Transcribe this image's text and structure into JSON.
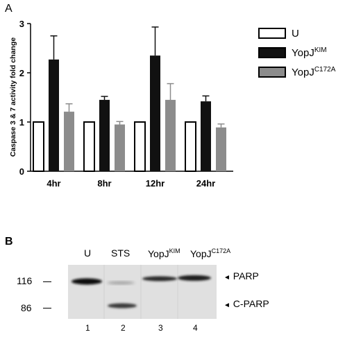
{
  "panelA": {
    "letter": "A",
    "chart_data": {
      "type": "bar",
      "categories": [
        "4hr",
        "8hr",
        "12hr",
        "24hr"
      ],
      "series": [
        {
          "name": "U",
          "values": [
            1.0,
            1.0,
            1.0,
            1.0
          ],
          "errors": [
            0,
            0,
            0,
            0
          ],
          "color": "#ffffff"
        },
        {
          "name": "YopJKIM",
          "values": [
            2.27,
            1.45,
            2.35,
            1.42
          ],
          "errors": [
            0.48,
            0.07,
            0.58,
            0.11
          ],
          "color": "#111111"
        },
        {
          "name": "YopJC172A",
          "values": [
            1.21,
            0.95,
            1.45,
            0.89
          ],
          "errors": [
            0.16,
            0.06,
            0.33,
            0.07
          ],
          "color": "#8c8c8c"
        }
      ],
      "ylabel": "Caspase 3 & 7 activity fold change",
      "ylim": [
        0,
        3
      ],
      "yticks": [
        0,
        1,
        2,
        3
      ],
      "grid": false,
      "legend_position": "right"
    },
    "legend": [
      {
        "base": "U",
        "sup": "",
        "color": "#ffffff"
      },
      {
        "base": "YopJ",
        "sup": "KIM",
        "color": "#111111"
      },
      {
        "base": "YopJ",
        "sup": "C172A",
        "color": "#8c8c8c"
      }
    ]
  },
  "panelB": {
    "letter": "B",
    "lane_labels": [
      {
        "base": "U",
        "sup": ""
      },
      {
        "base": "STS",
        "sup": ""
      },
      {
        "base": "YopJ",
        "sup": "KIM"
      },
      {
        "base": "YopJ",
        "sup": "C172A"
      }
    ],
    "mw_markers": [
      "116",
      "86"
    ],
    "band_labels": [
      "PARP",
      "C-PARP"
    ],
    "arrow_glyph": "◄",
    "lane_numbers": [
      "1",
      "2",
      "3",
      "4"
    ]
  }
}
